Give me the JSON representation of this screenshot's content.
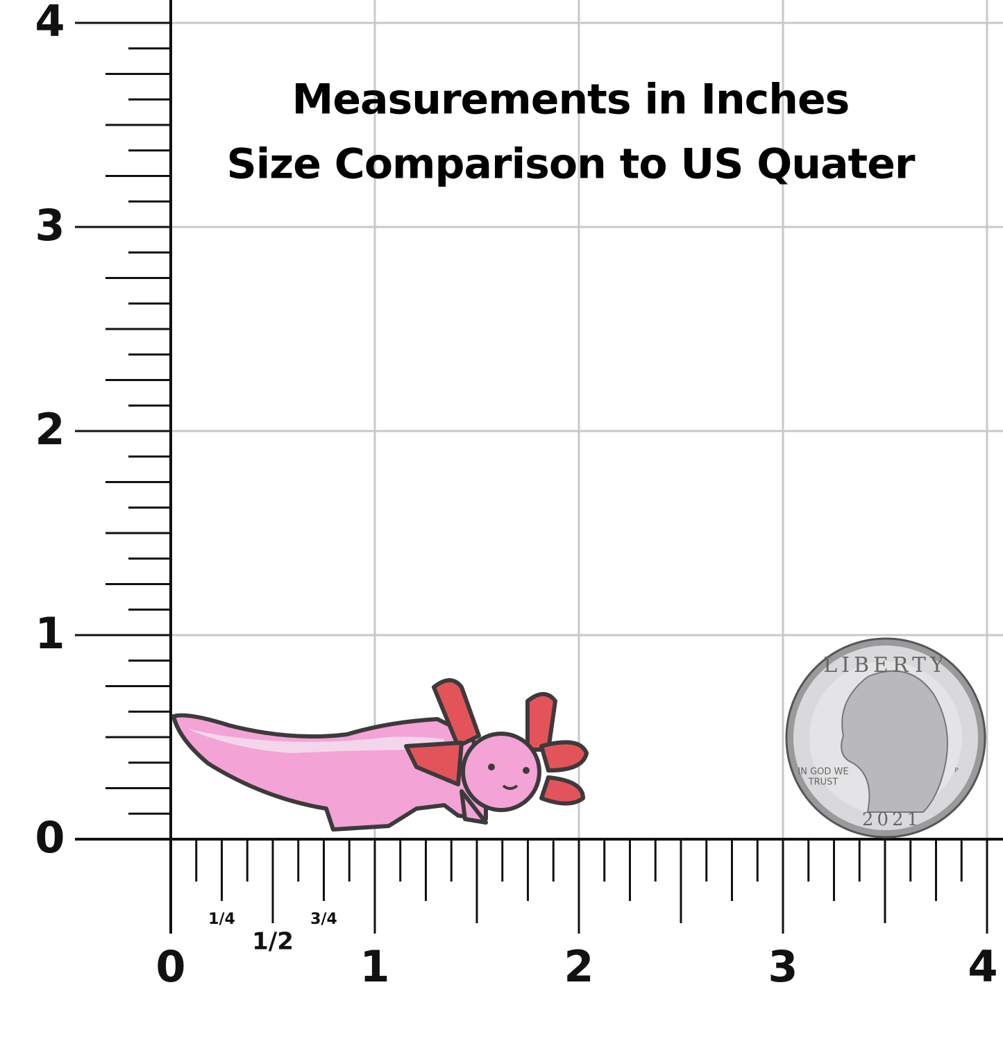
{
  "header": {
    "lines": [
      "Measurements in Inches",
      "Size Comparison to US Quater"
    ]
  },
  "y_ruler": {
    "labels": [
      "0",
      "1",
      "2",
      "3",
      "4"
    ]
  },
  "x_ruler": {
    "labels": [
      "0",
      "1",
      "2",
      "3",
      "4"
    ],
    "fraction_labels": [
      "1/4",
      "1/2",
      "3/4"
    ]
  },
  "coin": {
    "top_text": "LIBERTY",
    "motto": [
      "IN GOD WE",
      "TRUST"
    ],
    "year": "2021",
    "mint_mark": "P"
  }
}
